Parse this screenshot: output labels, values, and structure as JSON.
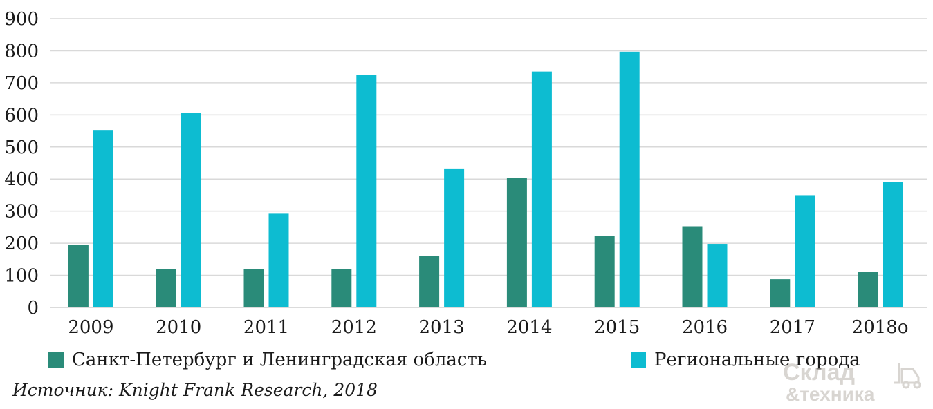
{
  "chart_data": {
    "type": "bar",
    "categories": [
      "2009",
      "2010",
      "2011",
      "2012",
      "2013",
      "2014",
      "2015",
      "2016",
      "2017",
      "2018о"
    ],
    "series": [
      {
        "name": "Санкт-Петербург и Ленинградская область",
        "color": "#2a8b79",
        "values": [
          195,
          120,
          120,
          120,
          160,
          403,
          222,
          253,
          88,
          110
        ]
      },
      {
        "name": "Региональные города",
        "color": "#0dbcd1",
        "values": [
          553,
          605,
          292,
          725,
          433,
          735,
          797,
          198,
          350,
          390
        ]
      }
    ],
    "yticks": [
      "0",
      "100",
      "200",
      "300",
      "400",
      "500",
      "600",
      "700",
      "800",
      "900"
    ],
    "ylim": [
      0,
      900
    ],
    "grid": true,
    "legend_position": "bottom"
  },
  "source": "Источник: Knight Frank Research, 2018",
  "watermark": {
    "line1": "Склад",
    "line2": "&техника"
  }
}
